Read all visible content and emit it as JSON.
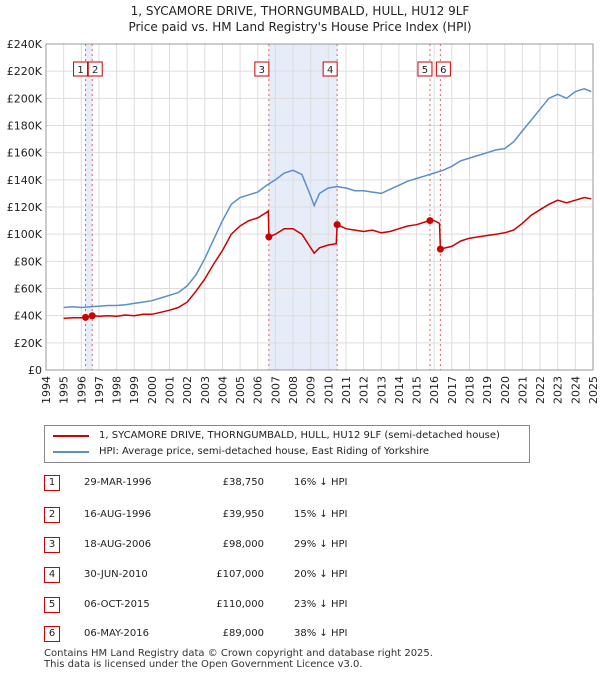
{
  "header": {
    "title": "1, SYCAMORE DRIVE, THORNGUMBALD, HULL, HU12 9LF",
    "subtitle": "Price paid vs. HM Land Registry's House Price Index (HPI)"
  },
  "chart_data": {
    "type": "line",
    "title": "1, SYCAMORE DRIVE, THORNGUMBALD, HULL, HU12 9LF",
    "subtitle": "Price paid vs. HM Land Registry's House Price Index (HPI)",
    "xlabel": "",
    "ylabel": "",
    "xlim": [
      1994,
      2025
    ],
    "ylim": [
      0,
      240000
    ],
    "x_ticks": [
      "1994",
      "1995",
      "1996",
      "1997",
      "1998",
      "1999",
      "2000",
      "2001",
      "2002",
      "2003",
      "2004",
      "2005",
      "2006",
      "2007",
      "2008",
      "2009",
      "2010",
      "2011",
      "2012",
      "2013",
      "2014",
      "2015",
      "2016",
      "2017",
      "2018",
      "2019",
      "2020",
      "2021",
      "2022",
      "2023",
      "2024",
      "2025"
    ],
    "y_ticks": [
      {
        "value": 0,
        "label": "£0"
      },
      {
        "value": 20000,
        "label": "£20K"
      },
      {
        "value": 40000,
        "label": "£40K"
      },
      {
        "value": 60000,
        "label": "£60K"
      },
      {
        "value": 80000,
        "label": "£80K"
      },
      {
        "value": 100000,
        "label": "£100K"
      },
      {
        "value": 120000,
        "label": "£120K"
      },
      {
        "value": 140000,
        "label": "£140K"
      },
      {
        "value": 160000,
        "label": "£160K"
      },
      {
        "value": 180000,
        "label": "£180K"
      },
      {
        "value": 200000,
        "label": "£200K"
      },
      {
        "value": 220000,
        "label": "£220K"
      },
      {
        "value": 240000,
        "label": "£240K"
      }
    ],
    "grid": true,
    "legend_position": "below chart",
    "shaded_ranges": [
      [
        1996.24,
        1996.62
      ],
      [
        2006.63,
        2010.5
      ]
    ],
    "series": [
      {
        "name": "1, SYCAMORE DRIVE, THORNGUMBALD, HULL, HU12 9LF (semi-detached house)",
        "color": "#cc0000",
        "points": [
          [
            1995.0,
            38000
          ],
          [
            1995.5,
            38500
          ],
          [
            1996.0,
            38500
          ],
          [
            1996.24,
            38750
          ],
          [
            1996.62,
            39950
          ],
          [
            1997.0,
            39500
          ],
          [
            1997.5,
            40000
          ],
          [
            1998.0,
            39500
          ],
          [
            1998.5,
            40500
          ],
          [
            1999.0,
            40000
          ],
          [
            1999.5,
            41000
          ],
          [
            2000.0,
            41000
          ],
          [
            2000.5,
            42500
          ],
          [
            2001.0,
            44000
          ],
          [
            2001.5,
            46000
          ],
          [
            2002.0,
            50000
          ],
          [
            2002.5,
            58000
          ],
          [
            2003.0,
            67000
          ],
          [
            2003.5,
            78000
          ],
          [
            2004.0,
            88000
          ],
          [
            2004.5,
            100000
          ],
          [
            2005.0,
            106000
          ],
          [
            2005.5,
            110000
          ],
          [
            2006.0,
            112000
          ],
          [
            2006.5,
            116000
          ],
          [
            2006.6,
            117000
          ],
          [
            2006.63,
            98000
          ],
          [
            2007.0,
            100000
          ],
          [
            2007.5,
            104000
          ],
          [
            2008.0,
            104000
          ],
          [
            2008.5,
            100000
          ],
          [
            2009.0,
            90000
          ],
          [
            2009.2,
            86000
          ],
          [
            2009.5,
            90000
          ],
          [
            2010.0,
            92000
          ],
          [
            2010.45,
            93000
          ],
          [
            2010.5,
            107000
          ],
          [
            2011.0,
            104000
          ],
          [
            2011.5,
            103000
          ],
          [
            2012.0,
            102000
          ],
          [
            2012.5,
            103000
          ],
          [
            2013.0,
            101000
          ],
          [
            2013.5,
            102000
          ],
          [
            2014.0,
            104000
          ],
          [
            2014.5,
            106000
          ],
          [
            2015.0,
            107000
          ],
          [
            2015.5,
            109000
          ],
          [
            2015.76,
            110000
          ],
          [
            2016.0,
            110000
          ],
          [
            2016.3,
            108000
          ],
          [
            2016.35,
            89000
          ],
          [
            2016.5,
            89500
          ],
          [
            2017.0,
            91000
          ],
          [
            2017.5,
            95000
          ],
          [
            2018.0,
            97000
          ],
          [
            2018.5,
            98000
          ],
          [
            2019.0,
            99000
          ],
          [
            2019.5,
            100000
          ],
          [
            2020.0,
            101000
          ],
          [
            2020.5,
            103000
          ],
          [
            2021.0,
            108000
          ],
          [
            2021.5,
            114000
          ],
          [
            2022.0,
            118000
          ],
          [
            2022.5,
            122000
          ],
          [
            2023.0,
            125000
          ],
          [
            2023.5,
            123000
          ],
          [
            2024.0,
            125000
          ],
          [
            2024.5,
            127000
          ],
          [
            2024.9,
            126000
          ]
        ]
      },
      {
        "name": "HPI: Average price, semi-detached house, East Riding of Yorkshire",
        "color": "#5b8fc9",
        "points": [
          [
            1995.0,
            46000
          ],
          [
            1995.5,
            46500
          ],
          [
            1996.0,
            46000
          ],
          [
            1996.5,
            46500
          ],
          [
            1997.0,
            47000
          ],
          [
            1997.5,
            47500
          ],
          [
            1998.0,
            47500
          ],
          [
            1998.5,
            48000
          ],
          [
            1999.0,
            49000
          ],
          [
            1999.5,
            50000
          ],
          [
            2000.0,
            51000
          ],
          [
            2000.5,
            53000
          ],
          [
            2001.0,
            55000
          ],
          [
            2001.5,
            57000
          ],
          [
            2002.0,
            62000
          ],
          [
            2002.5,
            70000
          ],
          [
            2003.0,
            82000
          ],
          [
            2003.5,
            96000
          ],
          [
            2004.0,
            110000
          ],
          [
            2004.5,
            122000
          ],
          [
            2005.0,
            127000
          ],
          [
            2005.5,
            129000
          ],
          [
            2006.0,
            131000
          ],
          [
            2006.5,
            136000
          ],
          [
            2007.0,
            140000
          ],
          [
            2007.5,
            145000
          ],
          [
            2008.0,
            147000
          ],
          [
            2008.5,
            144000
          ],
          [
            2009.0,
            128000
          ],
          [
            2009.2,
            121000
          ],
          [
            2009.5,
            130000
          ],
          [
            2010.0,
            134000
          ],
          [
            2010.5,
            135000
          ],
          [
            2011.0,
            134000
          ],
          [
            2011.5,
            132000
          ],
          [
            2012.0,
            132000
          ],
          [
            2012.5,
            131000
          ],
          [
            2013.0,
            130000
          ],
          [
            2013.5,
            133000
          ],
          [
            2014.0,
            136000
          ],
          [
            2014.5,
            139000
          ],
          [
            2015.0,
            141000
          ],
          [
            2015.5,
            143000
          ],
          [
            2016.0,
            145000
          ],
          [
            2016.5,
            147000
          ],
          [
            2017.0,
            150000
          ],
          [
            2017.5,
            154000
          ],
          [
            2018.0,
            156000
          ],
          [
            2018.5,
            158000
          ],
          [
            2019.0,
            160000
          ],
          [
            2019.5,
            162000
          ],
          [
            2020.0,
            163000
          ],
          [
            2020.5,
            168000
          ],
          [
            2021.0,
            176000
          ],
          [
            2021.5,
            184000
          ],
          [
            2022.0,
            192000
          ],
          [
            2022.5,
            200000
          ],
          [
            2023.0,
            203000
          ],
          [
            2023.5,
            200000
          ],
          [
            2024.0,
            205000
          ],
          [
            2024.5,
            207000
          ],
          [
            2024.9,
            205000
          ]
        ]
      }
    ],
    "markers": [
      {
        "label": "1",
        "x": 1996.24,
        "y": 38750
      },
      {
        "label": "2",
        "x": 1996.62,
        "y": 39950
      },
      {
        "label": "3",
        "x": 2006.63,
        "y": 98000
      },
      {
        "label": "4",
        "x": 2010.5,
        "y": 107000
      },
      {
        "label": "5",
        "x": 2015.76,
        "y": 110000
      },
      {
        "label": "6",
        "x": 2016.35,
        "y": 89000
      }
    ]
  },
  "legend": {
    "items": [
      {
        "label": "1, SYCAMORE DRIVE, THORNGUMBALD, HULL, HU12 9LF (semi-detached house)",
        "color": "#cc0000"
      },
      {
        "label": "HPI: Average price, semi-detached house, East Riding of Yorkshire",
        "color": "#5b8fc9"
      }
    ]
  },
  "transactions": [
    {
      "num": "1",
      "date": "29-MAR-1996",
      "price": "£38,750",
      "hpi": "16% ↓ HPI"
    },
    {
      "num": "2",
      "date": "16-AUG-1996",
      "price": "£39,950",
      "hpi": "15% ↓ HPI"
    },
    {
      "num": "3",
      "date": "18-AUG-2006",
      "price": "£98,000",
      "hpi": "29% ↓ HPI"
    },
    {
      "num": "4",
      "date": "30-JUN-2010",
      "price": "£107,000",
      "hpi": "20% ↓ HPI"
    },
    {
      "num": "5",
      "date": "06-OCT-2015",
      "price": "£110,000",
      "hpi": "23% ↓ HPI"
    },
    {
      "num": "6",
      "date": "06-MAY-2016",
      "price": "£89,000",
      "hpi": "38% ↓ HPI"
    }
  ],
  "footer": {
    "line1": "Contains HM Land Registry data © Crown copyright and database right 2025.",
    "line2": "This data is licensed under the Open Government Licence v3.0."
  }
}
